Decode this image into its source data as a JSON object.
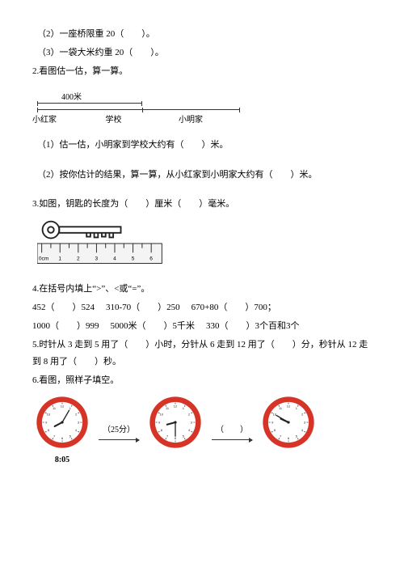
{
  "q2_2": "（2）一座桥限重 20（　　）。",
  "q2_3": "（3）一袋大米约重 20（　　）。",
  "q2_head": "2.看图估一估，算一算。",
  "diagram1": {
    "distance_label": "400米",
    "names": [
      "小红家",
      "学校",
      "小明家"
    ]
  },
  "q2_sub1": "（1）估一估，小明家到学校大约有（　　）米。",
  "q2_sub2": "（2）按你估计的结果，算一算，从小红家到小明家大约有（　　）米。",
  "q3": "3.如图，钥匙的长度为（　　）厘米（　　）毫米。",
  "ruler_nums": [
    "0cm",
    "1",
    "2",
    "3",
    "4",
    "5",
    "6"
  ],
  "q4": "4.在括号内填上“>”、<或“=”。",
  "row4a": [
    "452（　　）524",
    "310-70（　　）250",
    "670+80（　　）700；"
  ],
  "row4b": [
    "1000（　　）999",
    "5000米（　　）5千米",
    "330（　　）3个百和3个"
  ],
  "q5": "5.时针从 3 走到 5 用了（　　）小时，分针从 6 走到 12 用了（　　）分，秒针从 12 走到 8 用了（　　）秒。",
  "q6": "6.看图，照样子填空。",
  "clocks": {
    "time1_label": "8:05",
    "arrow1_label": "（25分）",
    "arrow2_label": "（　　）",
    "hands": [
      {
        "hour_angle": -120,
        "min_angle": 30
      },
      {
        "hour_angle": -105,
        "min_angle": 180
      },
      {
        "hour_angle": -60,
        "min_angle": -60
      }
    ],
    "nums": [
      "12",
      "1",
      "2",
      "3",
      "4",
      "5",
      "6",
      "7",
      "8",
      "9",
      "10",
      "11"
    ],
    "num_angles": [
      0,
      30,
      60,
      90,
      120,
      150,
      180,
      210,
      240,
      270,
      300,
      330
    ],
    "colors": {
      "ring": "#d63426",
      "face": "#ffffff",
      "hand": "#222"
    }
  }
}
